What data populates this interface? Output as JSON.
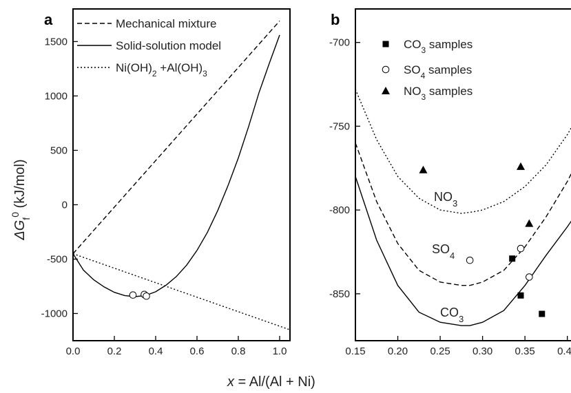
{
  "figure": {
    "panel_a_letter": "a",
    "panel_b_letter": "b",
    "xaxis_title_pre": "x",
    "xaxis_title_post": " = Al/(Al + Ni)",
    "yaxis_title_delta": "ΔG",
    "yaxis_title_sub": "f",
    "yaxis_title_sup": "0",
    "yaxis_title_unit": " (kJ/mol)"
  },
  "chart_data": [
    {
      "panel": "a",
      "type": "line",
      "xlim": [
        0.0,
        1.05
      ],
      "ylim": [
        -1250,
        1800
      ],
      "x_ticks": [
        "0.0",
        "0.2",
        "0.4",
        "0.6",
        "0.8",
        "1.0"
      ],
      "y_ticks": [
        "-1000",
        "-500",
        "0",
        "500",
        "1000",
        "1500"
      ],
      "xlabel": "x = Al/(Al + Ni)",
      "ylabel": "ΔGf0 (kJ/mol)",
      "legend_position": "top-left",
      "series": [
        {
          "name": "Mechanical mixture",
          "style": "dashed",
          "x": [
            0.0,
            1.0
          ],
          "y": [
            -450,
            1690
          ]
        },
        {
          "name": "Solid-solution model",
          "style": "solid",
          "x": [
            0.0,
            0.05,
            0.1,
            0.15,
            0.2,
            0.25,
            0.3,
            0.35,
            0.4,
            0.45,
            0.5,
            0.55,
            0.6,
            0.65,
            0.7,
            0.75,
            0.8,
            0.85,
            0.9,
            0.95,
            1.0
          ],
          "y": [
            -450,
            -600,
            -690,
            -755,
            -805,
            -835,
            -845,
            -835,
            -800,
            -740,
            -660,
            -555,
            -420,
            -255,
            -55,
            175,
            430,
            720,
            1030,
            1300,
            1560
          ]
        },
        {
          "name_parts": [
            "Ni(OH)",
            "2",
            "  +Al(OH)",
            "3"
          ],
          "style": "dotted",
          "x": [
            0.0,
            1.05
          ],
          "y": [
            -450,
            -1150
          ]
        }
      ],
      "points": {
        "marker": "open-circle",
        "x": [
          0.29,
          0.345,
          0.355
        ],
        "y": [
          -830,
          -825,
          -840
        ]
      }
    },
    {
      "panel": "b",
      "type": "line",
      "xlim": [
        0.15,
        0.41
      ],
      "ylim": [
        -878,
        -680
      ],
      "x_ticks": [
        "0.15",
        "0.20",
        "0.25",
        "0.30",
        "0.35",
        "0.40"
      ],
      "y_ticks": [
        "-850",
        "-800",
        "-750",
        "-700"
      ],
      "legend_position": "top-left",
      "series": [
        {
          "name": "NO",
          "name_sub": "3",
          "style": "dotted",
          "x": [
            0.15,
            0.175,
            0.2,
            0.225,
            0.25,
            0.275,
            0.29,
            0.3,
            0.325,
            0.35,
            0.375,
            0.4,
            0.415
          ],
          "y": [
            -728,
            -758,
            -780,
            -793,
            -800,
            -802,
            -801,
            -800,
            -795,
            -786,
            -773,
            -755,
            -742
          ]
        },
        {
          "name": "SO",
          "name_sub": "4",
          "style": "dashed",
          "x": [
            0.15,
            0.175,
            0.2,
            0.225,
            0.25,
            0.275,
            0.285,
            0.3,
            0.325,
            0.35,
            0.375,
            0.4,
            0.415
          ],
          "y": [
            -760,
            -795,
            -820,
            -836,
            -843,
            -845,
            -845,
            -843,
            -836,
            -822,
            -804,
            -783,
            -768
          ]
        },
        {
          "name": "CO",
          "name_sub": "3",
          "style": "solid",
          "x": [
            0.15,
            0.175,
            0.2,
            0.225,
            0.25,
            0.275,
            0.285,
            0.3,
            0.325,
            0.35,
            0.375,
            0.4,
            0.415
          ],
          "y": [
            -780,
            -818,
            -845,
            -861,
            -867,
            -869,
            -869,
            -867,
            -860,
            -845,
            -827,
            -810,
            -799
          ]
        }
      ],
      "sample_sets": [
        {
          "label": "CO",
          "label_sub": "3",
          "label_suffix": "  samples",
          "marker": "filled-square",
          "x": [
            0.335,
            0.345,
            0.37
          ],
          "y": [
            -829,
            -851,
            -862
          ]
        },
        {
          "label": "SO",
          "label_sub": "4",
          "label_suffix": "  samples",
          "marker": "open-circle",
          "x": [
            0.285,
            0.345,
            0.355
          ],
          "y": [
            -830,
            -823,
            -840
          ]
        },
        {
          "label": "NO",
          "label_sub": "3",
          "label_suffix": "  samples",
          "marker": "filled-triangle",
          "x": [
            0.23,
            0.345,
            0.355
          ],
          "y": [
            -776,
            -774,
            -808
          ]
        }
      ]
    }
  ]
}
